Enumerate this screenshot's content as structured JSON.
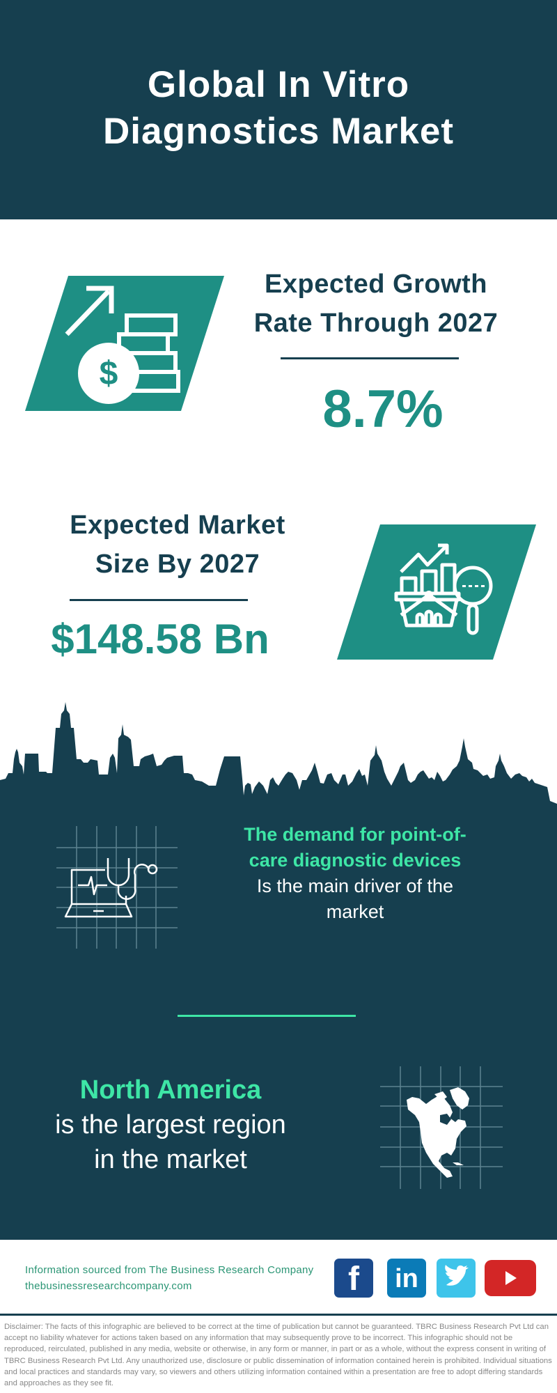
{
  "header": {
    "title_line1": "Global In Vitro",
    "title_line2": "Diagnostics Market"
  },
  "growth": {
    "heading_line1": "Expected Growth",
    "heading_line2": "Rate Through 2027",
    "value": "8.7%",
    "icon": "money-growth-icon"
  },
  "market_size": {
    "heading_line1": "Expected Market",
    "heading_line2": "Size By 2027",
    "value": "$148.58 Bn",
    "icon": "market-analysis-icon"
  },
  "driver": {
    "highlight_line1": "The demand for point-of-",
    "highlight_line2": "care diagnostic devices",
    "text_line1": "Is the main driver of the",
    "text_line2": "market",
    "icon": "laptop-stethoscope-icon"
  },
  "region": {
    "highlight": "North America",
    "text_line1": "is the largest region",
    "text_line2": "in the market",
    "icon": "north-america-map-icon"
  },
  "footer": {
    "source": "Information sourced from The Business Research Company",
    "website": "thebusinessresearchcompany.com",
    "social": [
      "facebook",
      "linkedin",
      "twitter",
      "youtube"
    ]
  },
  "disclaimer": "Disclaimer: The facts of this infographic are believed to be correct at the time of publication but cannot be guaranteed. TBRC Business Research Pvt Ltd can accept no liability whatever for actions taken based on any information that may subsequently prove to be incorrect. This infographic should not be reproduced, reirculated, published in any media, website or otherwise, in any form or manner, in part or as a whole, without the express consent in writing of TBRC Business Research Pvt Ltd. Any unauthorized use, disclosure or public dissemination of information contained herein is prohibited. Individual situations and local practices and standards may vary, so viewers and others utilizing information contained within a presentation are free to adopt differing standards and approaches as they see fit.",
  "colors": {
    "dark": "#163f4f",
    "teal": "#1e8f84",
    "mint": "#3ee6a6"
  }
}
